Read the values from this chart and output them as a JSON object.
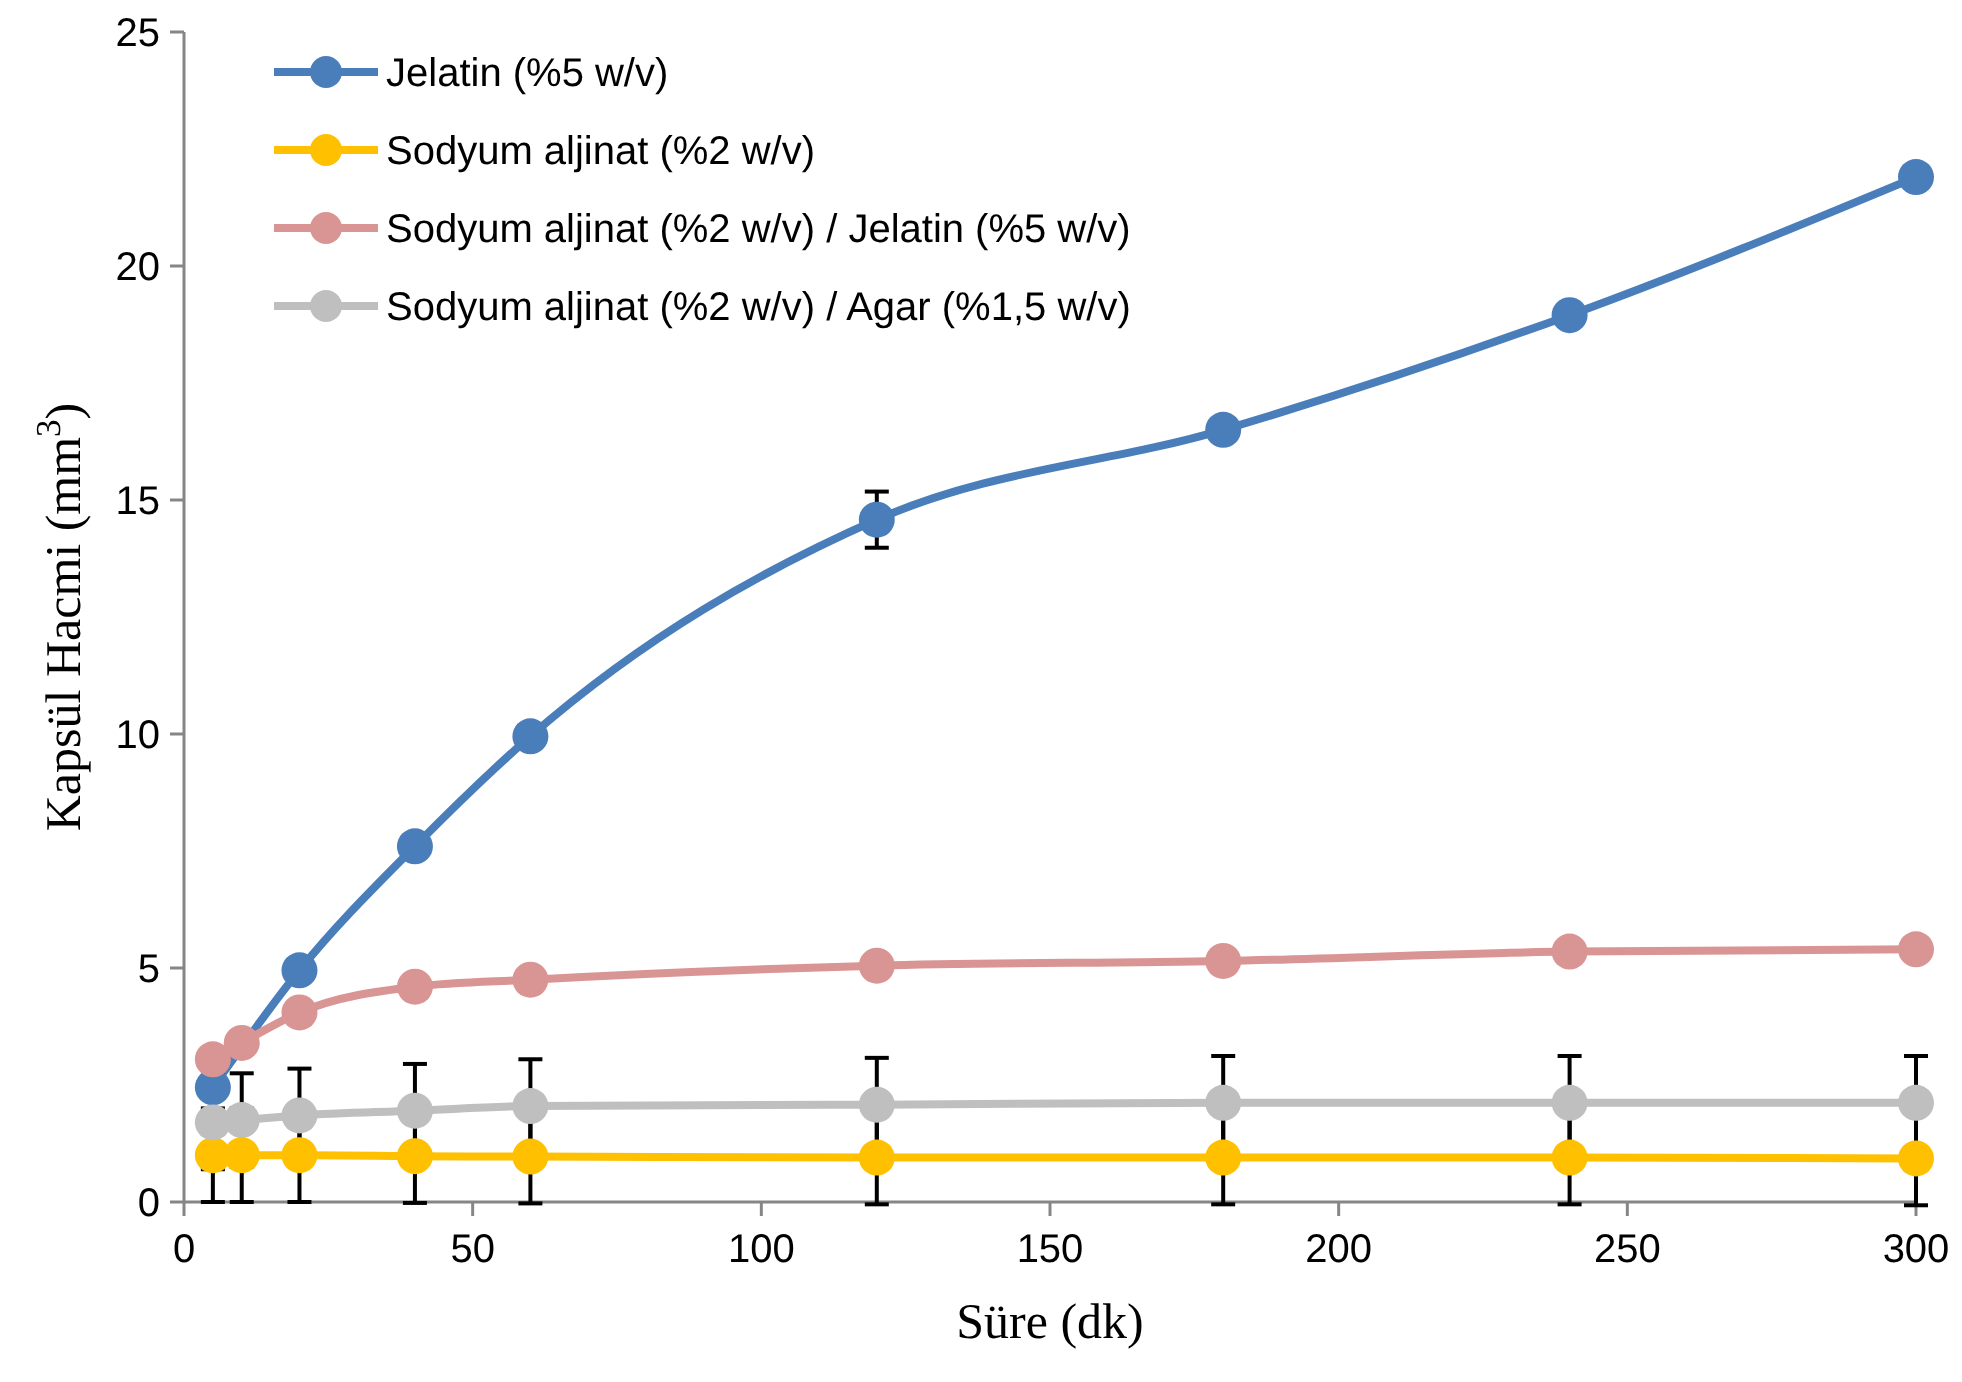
{
  "chart_data": {
    "type": "line",
    "xlabel": "Süre (dk)",
    "ylabel": "Kapsül  Hacmi (mm$^{3}$)",
    "x": [
      5,
      10,
      20,
      40,
      60,
      120,
      180,
      240,
      300
    ],
    "xlim": [
      0,
      300
    ],
    "xticks": [
      0,
      50,
      100,
      150,
      200,
      250,
      300
    ],
    "ylim": [
      0,
      25
    ],
    "yticks": [
      0,
      5,
      10,
      15,
      20,
      25
    ],
    "grid": false,
    "legend": "top left",
    "marker": "circle",
    "line_style": "solid",
    "series": [
      {
        "name": "Jelatin (%5 w/v)",
        "color": "#4a7ebb",
        "values": [
          2.45,
          null,
          4.95,
          7.6,
          9.95,
          14.58,
          16.5,
          18.95,
          21.9
        ],
        "errors": [
          null,
          null,
          null,
          null,
          null,
          0.6,
          null,
          null,
          null
        ]
      },
      {
        "name": "Sodyum aljinat (%2 w/v)",
        "color": "#ffc000",
        "values": [
          1.0,
          1.0,
          1.0,
          0.98,
          0.97,
          0.95,
          0.95,
          0.95,
          0.93
        ],
        "errors": [
          1,
          1,
          1,
          1,
          1,
          1,
          1,
          1,
          1
        ]
      },
      {
        "name": "Sodyum aljinat (%2 w/v) / Jelatin (%5 w/v)",
        "color": "#d99594",
        "values": [
          3.05,
          3.4,
          4.05,
          4.6,
          4.75,
          5.05,
          5.15,
          5.35,
          5.4
        ]
      },
      {
        "name": "Sodyum aljinat (%2 w/v) / Agar (%1,5 w/v)",
        "color": "#bfbfbf",
        "values": [
          1.7,
          1.75,
          1.85,
          1.95,
          2.05,
          2.08,
          2.12,
          2.12,
          2.12
        ],
        "errors": [
          1,
          1,
          1,
          1,
          1,
          1,
          1,
          1,
          1
        ]
      }
    ]
  }
}
